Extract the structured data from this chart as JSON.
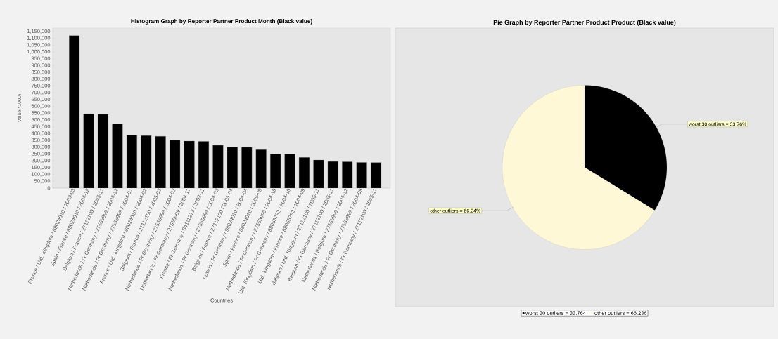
{
  "chart_data": [
    {
      "type": "bar",
      "title": "Histogram Graph by Reporter Partner Product Month (Black value)",
      "xlabel": "Countries",
      "ylabel": "Value(*1000)",
      "color": "#000000",
      "categories": [
        "France / Utd. Kingdom / 88024010 / 2003-03",
        "Spain / France / 88024010 / 2004-12",
        "Belgium / France / 27112100 / 2005-11",
        "Netherlands / Fr Germany / 27555999 / 2004-12",
        "Netherlands / Fr Germany / 27555999 / 2004-01",
        "France / Utd. Kingdom / 88024010 / 2004-02",
        "Belgium / France / 27112100 / 2005-03",
        "Netherlands / Fr Germany / 27555999 / 2004-02",
        "Netherlands / Fr Germany / 27555999 / 2004-11",
        "France / Fr Germany / 84111213 / 2002-11",
        "Netherlands / Fr Germany / 27555999 / 2004-03",
        "Belgium / France / 27112100 / 2005-04",
        "Austria / Fr Germany / 88024010 / 2004-04",
        "Spain / France / 88024010 / 2005-08",
        "Netherlands / Fr Germany / 27555999 / 2004-10",
        "Utd. Kingdom / Fr Germany / 88055792 / 2004-10",
        "Utd. Kingdom / France / 88055792 / 2004-09",
        "Belgium / Utd. Kingdom / 27112100 / 2005-11",
        "Belgium / Fr Germany / 27112100 / 2005-11",
        "Netherlands / Belgium / 27555999 / 2004-12",
        "Netherlands / Fr Germany / 27555999 / 2004-09",
        "Netherlands / Fr Germany / 27112100 / 2005-11"
      ],
      "values": [
        1120000,
        545000,
        542000,
        471000,
        388000,
        385000,
        380000,
        352000,
        345000,
        342000,
        314000,
        301000,
        299000,
        282000,
        250000,
        250000,
        225000,
        206000,
        195000,
        193000,
        188000,
        187000
      ],
      "ylim": [
        0,
        1175000
      ],
      "yticks": [
        0,
        {
          "value": 50000,
          "label": "50,000"
        },
        {
          "value": 100000,
          "label": "100,000"
        },
        {
          "value": 150000,
          "label": "150,000"
        },
        {
          "value": 200000,
          "label": "200,000"
        },
        {
          "value": 250000,
          "label": "250,000"
        },
        {
          "value": 300000,
          "label": "300,000"
        },
        {
          "value": 350000,
          "label": "350,000"
        },
        {
          "value": 400000,
          "label": "400,000"
        },
        {
          "value": 450000,
          "label": "450,000"
        },
        {
          "value": 500000,
          "label": "500,000"
        },
        {
          "value": 550000,
          "label": "550,000"
        },
        {
          "value": 600000,
          "label": "600,000"
        },
        {
          "value": 650000,
          "label": "650,000"
        },
        {
          "value": 700000,
          "label": "700,000"
        },
        {
          "value": 750000,
          "label": "750,000"
        },
        {
          "value": 800000,
          "label": "800,000"
        },
        {
          "value": 850000,
          "label": "850,000"
        },
        {
          "value": 900000,
          "label": "900,000"
        },
        {
          "value": 950000,
          "label": "950,000"
        },
        {
          "value": 1000000,
          "label": "1,000,000"
        },
        {
          "value": 1050000,
          "label": "1,050,000"
        },
        {
          "value": 1100000,
          "label": "1,100,000"
        },
        {
          "value": 1150000,
          "label": "1,150,000"
        }
      ]
    },
    {
      "type": "pie",
      "title": "Pie Graph by Reporter Partner Product Product (Black value)",
      "categories": [
        "worst 30 outliers = 33.764",
        "other outliers = 66.236"
      ],
      "values": [
        33.764,
        66.236
      ],
      "colors": [
        "#000000",
        "#fff8d6"
      ],
      "value_labels": [
        "worst 30 outliers = 33.76%",
        "other outliers = 66.24%"
      ],
      "legend": "bottom"
    }
  ]
}
